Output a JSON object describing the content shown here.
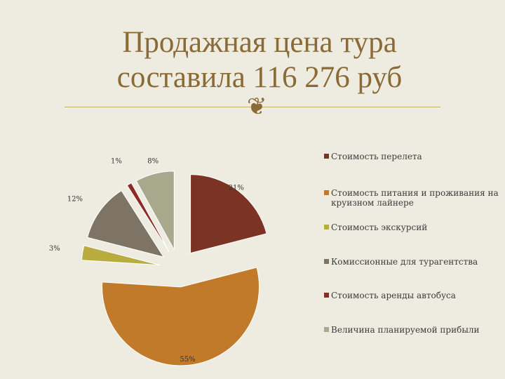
{
  "slide": {
    "title_line1": "Продажная цена тура",
    "title_line2": "составила 116 276 руб"
  },
  "chart_data": {
    "type": "pie",
    "title": "",
    "legend_position": "right",
    "series": [
      {
        "name": "Стоимость перелета",
        "value": 21,
        "label": "21%",
        "color": "#7b3323"
      },
      {
        "name": "Стоимость питания и проживания на круизном лайнере",
        "value": 55,
        "label": "55%",
        "color": "#c07a2a"
      },
      {
        "name": "Стоимость экскурсий",
        "value": 3,
        "label": "3%",
        "color": "#b9ac3f"
      },
      {
        "name": "Комиссионные для турагентства",
        "value": 12,
        "label": "12%",
        "color": "#7e7465"
      },
      {
        "name": "Стоимость аренды автобуса",
        "value": 1,
        "label": "1%",
        "color": "#8e2b23"
      },
      {
        "name": "Величина планируемой прибыли",
        "value": 8,
        "label": "8%",
        "color": "#a7a98c"
      }
    ]
  }
}
